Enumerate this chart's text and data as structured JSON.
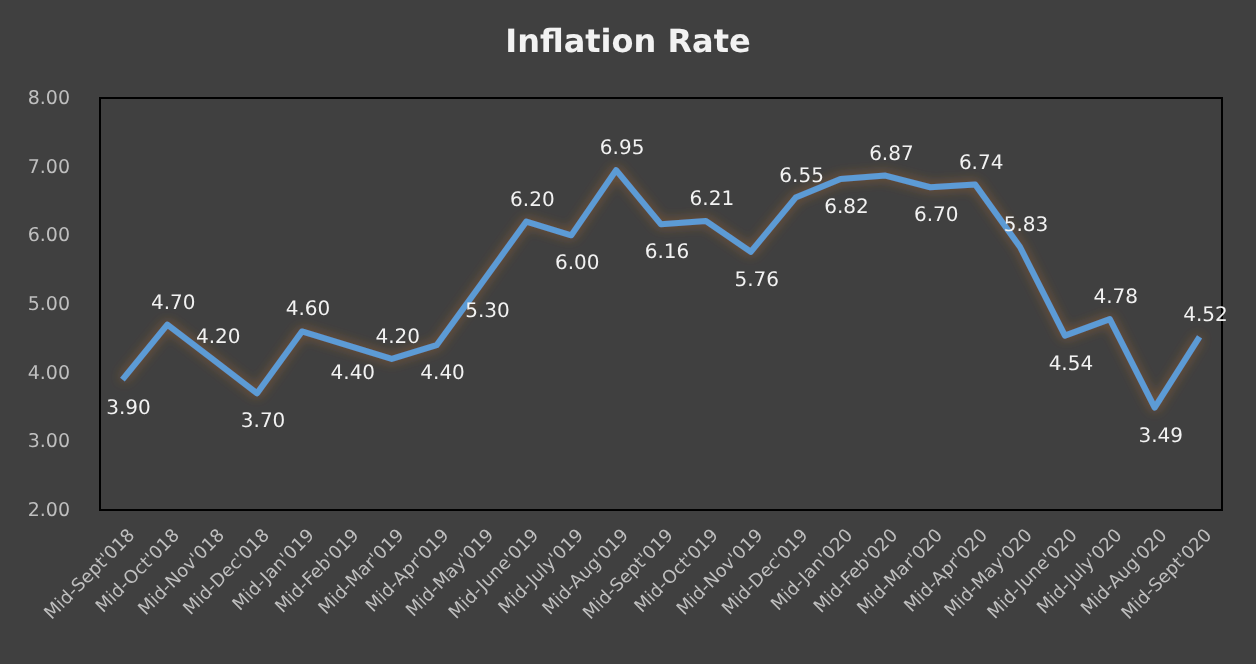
{
  "chart_data": {
    "type": "line",
    "title": "Inflation Rate",
    "categories": [
      "Mid-Sept'018",
      "Mid-Oct'018",
      "Mid-Nov'018",
      "Mid-Dec'018",
      "Mid-Jan'019",
      "Mid-Feb'019",
      "Mid-Mar'019",
      "Mid-Apr'019",
      "Mid-May'019",
      "Mid-June'019",
      "Mid-July'019",
      "Mid-Aug'019",
      "Mid-Sept'019",
      "Mid-Oct'019",
      "Mid-Nov'019",
      "Mid-Dec'019",
      "Mid-Jan'020",
      "Mid-Feb'020",
      "Mid-Mar'020",
      "Mid-Apr'020",
      "Mid-May'020",
      "Mid-June'020",
      "Mid-July'020",
      "Mid-Aug'020",
      "Mid-Sept'020"
    ],
    "series": [
      {
        "color": "#5b9bd5",
        "values": [
          3.9,
          4.7,
          4.2,
          3.7,
          4.6,
          4.4,
          4.2,
          4.4,
          5.3,
          6.2,
          6.0,
          6.95,
          6.16,
          6.21,
          5.76,
          6.55,
          6.82,
          6.87,
          6.7,
          6.74,
          5.83,
          4.54,
          4.78,
          3.49,
          4.52
        ],
        "value_labels": [
          "3.90",
          "4.70",
          "4.20",
          "3.70",
          "4.60",
          "4.40",
          "4.20",
          "4.40",
          "5.30",
          "6.20",
          "6.00",
          "6.95",
          "6.16",
          "6.21",
          "5.76",
          "6.55",
          "6.82",
          "6.87",
          "6.70",
          "6.74",
          "5.83",
          "4.54",
          "4.78",
          "3.49",
          "4.52"
        ]
      }
    ],
    "ylim": [
      2,
      8
    ],
    "yticks": [
      {
        "value": 2,
        "label": "2.00"
      },
      {
        "value": 3,
        "label": "3.00"
      },
      {
        "value": 4,
        "label": "4.00"
      },
      {
        "value": 5,
        "label": "5.00"
      },
      {
        "value": 6,
        "label": "6.00"
      },
      {
        "value": 7,
        "label": "7.00"
      },
      {
        "value": 8,
        "label": "8.00"
      }
    ],
    "grid": false,
    "marker": "none",
    "line_style": "solid"
  }
}
